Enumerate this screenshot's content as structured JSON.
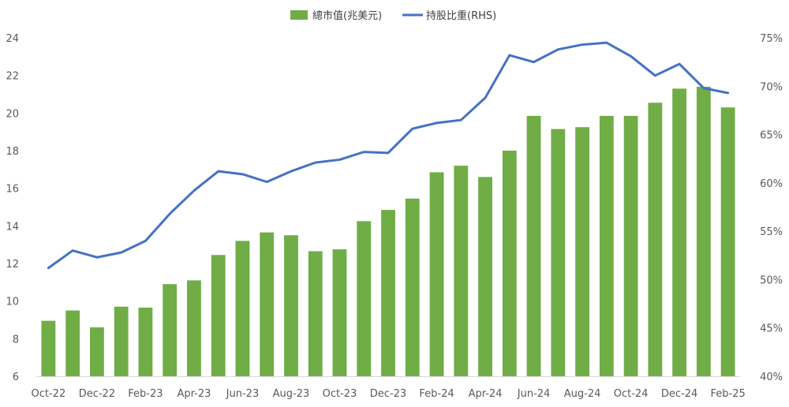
{
  "chart_data": {
    "type": "bar",
    "categories": [
      "Oct-22",
      "Nov-22",
      "Dec-22",
      "Jan-23",
      "Feb-23",
      "Mar-23",
      "Apr-23",
      "May-23",
      "Jun-23",
      "Jul-23",
      "Aug-23",
      "Sep-23",
      "Oct-23",
      "Nov-23",
      "Dec-23",
      "Jan-24",
      "Feb-24",
      "Mar-24",
      "Apr-24",
      "May-24",
      "Jun-24",
      "Jul-24",
      "Aug-24",
      "Sep-24",
      "Oct-24",
      "Nov-24",
      "Dec-24",
      "Jan-25",
      "Feb-25"
    ],
    "x_tick_labels": [
      "Oct-22",
      "Dec-22",
      "Feb-23",
      "Apr-23",
      "Jun-23",
      "Aug-23",
      "Oct-23",
      "Dec-23",
      "Feb-24",
      "Apr-24",
      "Jun-24",
      "Aug-24",
      "Oct-24",
      "Dec-24",
      "Feb-25"
    ],
    "series": [
      {
        "name": "總市值(兆美元)",
        "type": "bar",
        "axis": "left",
        "color": "#70ad47",
        "values": [
          8.95,
          9.5,
          8.6,
          9.7,
          9.65,
          10.9,
          11.1,
          12.45,
          13.2,
          13.65,
          13.5,
          12.65,
          12.75,
          14.25,
          14.85,
          15.45,
          16.85,
          17.2,
          16.6,
          18.0,
          19.85,
          19.15,
          19.25,
          19.85,
          19.85,
          20.55,
          21.3,
          21.4,
          20.3
        ]
      },
      {
        "name": "持股比重(RHS)",
        "type": "line",
        "axis": "right",
        "color": "#4472c4",
        "values": [
          51.2,
          53.0,
          52.3,
          52.8,
          54.0,
          56.8,
          59.2,
          61.2,
          60.9,
          60.1,
          61.2,
          62.1,
          62.4,
          63.2,
          63.1,
          65.6,
          66.2,
          66.5,
          68.8,
          73.2,
          72.5,
          73.8,
          74.3,
          74.5,
          73.1,
          71.1,
          72.3,
          69.8,
          69.3
        ]
      }
    ],
    "ylim": [
      6,
      24
    ],
    "y_ticks": [
      6,
      8,
      10,
      12,
      14,
      16,
      18,
      20,
      22,
      24
    ],
    "y2lim": [
      40,
      75
    ],
    "y2_ticks": [
      "40%",
      "45%",
      "50%",
      "55%",
      "60%",
      "65%",
      "70%",
      "75%"
    ],
    "y2_tick_values": [
      40,
      45,
      50,
      55,
      60,
      65,
      70,
      75
    ],
    "legend_position": "top-center",
    "grid": false
  }
}
